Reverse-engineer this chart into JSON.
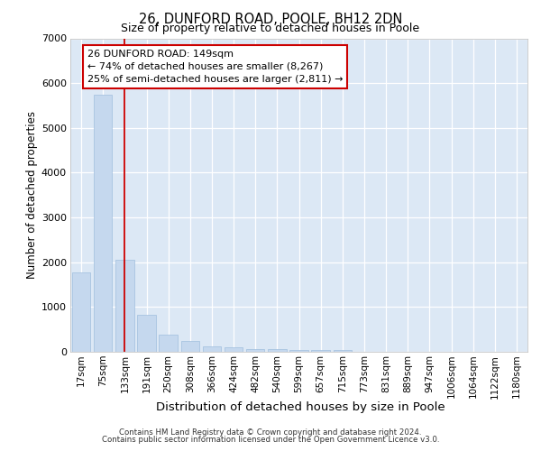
{
  "title_line1": "26, DUNFORD ROAD, POOLE, BH12 2DN",
  "title_line2": "Size of property relative to detached houses in Poole",
  "xlabel": "Distribution of detached houses by size in Poole",
  "ylabel": "Number of detached properties",
  "categories": [
    "17sqm",
    "75sqm",
    "133sqm",
    "191sqm",
    "250sqm",
    "308sqm",
    "366sqm",
    "424sqm",
    "482sqm",
    "540sqm",
    "599sqm",
    "657sqm",
    "715sqm",
    "773sqm",
    "831sqm",
    "889sqm",
    "947sqm",
    "1006sqm",
    "1064sqm",
    "1122sqm",
    "1180sqm"
  ],
  "values": [
    1780,
    5750,
    2060,
    830,
    380,
    240,
    120,
    110,
    70,
    70,
    50,
    50,
    50,
    0,
    0,
    0,
    0,
    0,
    0,
    0,
    0
  ],
  "bar_color": "#c5d8ee",
  "bar_edge_color": "#a0bedd",
  "vline_x": 2.0,
  "vline_color": "#cc0000",
  "annotation_text": "26 DUNFORD ROAD: 149sqm\n← 74% of detached houses are smaller (8,267)\n25% of semi-detached houses are larger (2,811) →",
  "ylim_max": 7000,
  "yticks": [
    0,
    1000,
    2000,
    3000,
    4000,
    5000,
    6000,
    7000
  ],
  "plot_bg_color": "#dce8f5",
  "grid_color": "#ffffff",
  "footer_line1": "Contains HM Land Registry data © Crown copyright and database right 2024.",
  "footer_line2": "Contains public sector information licensed under the Open Government Licence v3.0."
}
